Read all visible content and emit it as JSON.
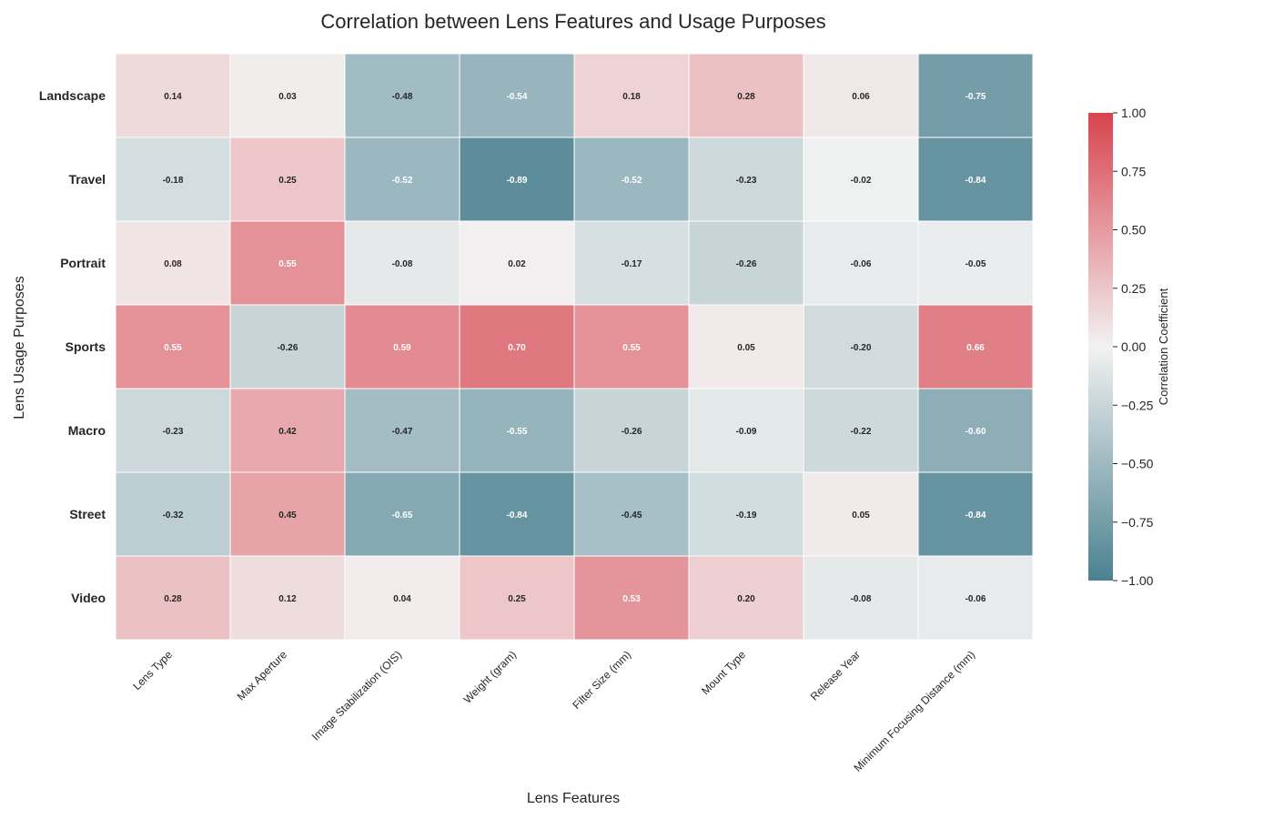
{
  "chart_data": {
    "type": "heatmap",
    "title": "Correlation between Lens Features and Usage Purposes",
    "xlabel": "Lens Features",
    "ylabel": "Lens Usage Purposes",
    "x_categories": [
      "Lens Type",
      "Max Aperture",
      "Image Stabilization (OIS)",
      "Weight (gram)",
      "Filter Size (mm)",
      "Mount Type",
      "Release Year",
      "Minimum Focusing Distance (mm)"
    ],
    "y_categories": [
      "Landscape",
      "Travel",
      "Portrait",
      "Sports",
      "Macro",
      "Street",
      "Video"
    ],
    "values": [
      [
        0.14,
        0.03,
        -0.48,
        -0.54,
        0.18,
        0.28,
        0.06,
        -0.75
      ],
      [
        -0.18,
        0.25,
        -0.52,
        -0.89,
        -0.52,
        -0.23,
        -0.02,
        -0.84
      ],
      [
        0.08,
        0.55,
        -0.08,
        0.02,
        -0.17,
        -0.26,
        -0.06,
        -0.05
      ],
      [
        0.55,
        -0.26,
        0.59,
        0.7,
        0.55,
        0.05,
        -0.2,
        0.66
      ],
      [
        -0.23,
        0.42,
        -0.47,
        -0.55,
        -0.26,
        -0.09,
        -0.22,
        -0.6
      ],
      [
        -0.32,
        0.45,
        -0.65,
        -0.84,
        -0.45,
        -0.19,
        0.05,
        -0.84
      ],
      [
        0.28,
        0.12,
        0.04,
        0.25,
        0.53,
        0.2,
        -0.08,
        -0.06
      ]
    ],
    "value_format": "2 decimals",
    "colorbar": {
      "label": "Correlation Coefficient",
      "range": [
        -1,
        1
      ],
      "ticks": [
        "1.00",
        "0.75",
        "0.50",
        "0.25",
        "0.00",
        "−0.25",
        "−0.50",
        "−0.75",
        "−1.00"
      ],
      "low_color": "#4b8190",
      "mid_color": "#f2f2f2",
      "high_color": "#d8434e"
    }
  }
}
